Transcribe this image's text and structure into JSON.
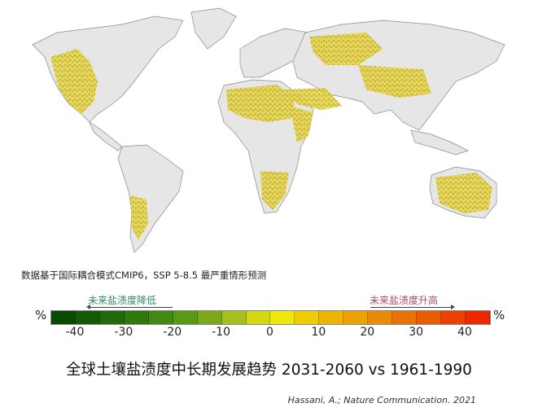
{
  "map": {
    "land_color": "#e6e6e6",
    "coast_color": "#8a8a8a"
  },
  "note": "数据基于国际耦合模式CMIP6，SSP 5-8.5 最严重情形预测",
  "legend": {
    "left_label": "未来盐渍度降低",
    "right_label": "未来盐渍度升高",
    "unit_left": "%",
    "unit_right": "%",
    "ticks": [
      "-40",
      "-30",
      "-20",
      "-10",
      "0",
      "10",
      "20",
      "30",
      "40"
    ],
    "range": [
      -45,
      45
    ],
    "colors": [
      "#0b4a02",
      "#175a06",
      "#22690a",
      "#2f780d",
      "#428812",
      "#5c9817",
      "#7ca81c",
      "#a8bf1e",
      "#d4d812",
      "#efe80e",
      "#f0cc06",
      "#eeb404",
      "#eca204",
      "#e98b04",
      "#e77304",
      "#e85c04",
      "#ea4204",
      "#ee2802"
    ]
  },
  "title": "全球土壤盐渍度中长期发展趋势 2031-2060 vs 1961-1990",
  "citation": "Hassani, A.; Nature Communication. 2021"
}
